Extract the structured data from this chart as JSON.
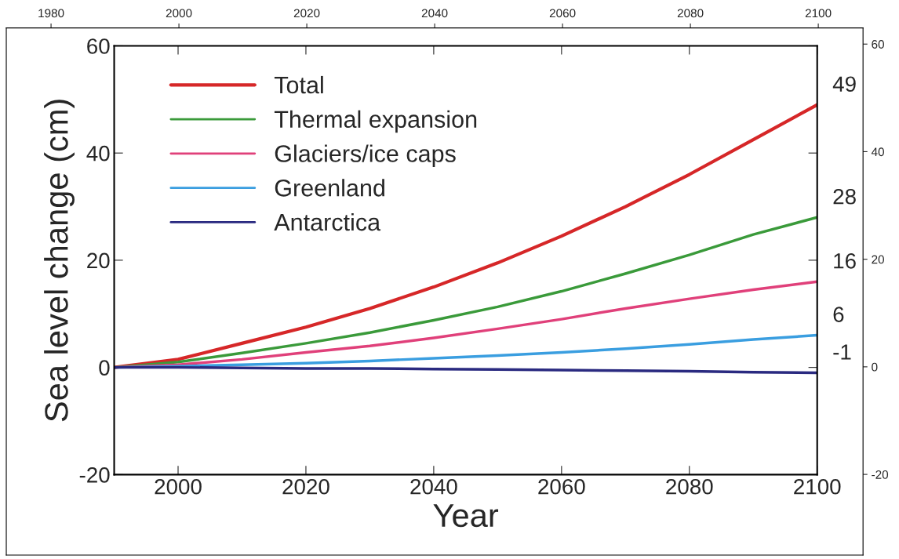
{
  "chart_data": {
    "type": "line",
    "xlabel": "Year",
    "ylabel": "Sea level change (cm)",
    "x": [
      1990,
      2000,
      2010,
      2020,
      2030,
      2040,
      2050,
      2060,
      2070,
      2080,
      2090,
      2100
    ],
    "xlim": [
      1990,
      2100
    ],
    "xticks": [
      2000,
      2020,
      2040,
      2060,
      2080,
      2100
    ],
    "ylim": [
      -20,
      60
    ],
    "yticks": [
      -20,
      0,
      20,
      40,
      60
    ],
    "x2lim": [
      1973,
      2107
    ],
    "x2ticks": [
      1980,
      2000,
      2020,
      2040,
      2060,
      2080,
      2100
    ],
    "y2lim": [
      -35,
      63
    ],
    "y2ticks": [
      -20,
      0,
      20,
      40,
      60
    ],
    "legend": "top left",
    "grid": false,
    "series": [
      {
        "name": "Total",
        "color": "#d62728",
        "values": [
          0,
          1.5,
          4.5,
          7.5,
          11,
          15,
          19.5,
          24.5,
          30,
          36,
          42.5,
          49
        ],
        "value_labels": [
          null,
          null,
          null,
          null,
          null,
          null,
          null,
          null,
          null,
          null,
          null,
          "49"
        ]
      },
      {
        "name": "Thermal expansion",
        "color": "#3a9a3a",
        "values": [
          0,
          1,
          2.7,
          4.5,
          6.5,
          8.8,
          11.3,
          14.2,
          17.5,
          21,
          24.8,
          28
        ],
        "value_labels": [
          null,
          null,
          null,
          null,
          null,
          null,
          null,
          null,
          null,
          null,
          null,
          "28"
        ]
      },
      {
        "name": "Glaciers/ice caps",
        "color": "#e0407a",
        "values": [
          0,
          0.5,
          1.5,
          2.8,
          4,
          5.5,
          7.2,
          9,
          11,
          12.8,
          14.5,
          16
        ],
        "value_labels": [
          null,
          null,
          null,
          null,
          null,
          null,
          null,
          null,
          null,
          null,
          null,
          "16"
        ]
      },
      {
        "name": "Greenland",
        "color": "#3a9ee0",
        "values": [
          0,
          0.2,
          0.5,
          0.8,
          1.2,
          1.7,
          2.2,
          2.8,
          3.5,
          4.3,
          5.2,
          6
        ],
        "value_labels": [
          null,
          null,
          null,
          null,
          null,
          null,
          null,
          null,
          null,
          null,
          null,
          "6"
        ]
      },
      {
        "name": "Antarctica",
        "color": "#2a2a80",
        "values": [
          0,
          0,
          -0.1,
          -0.2,
          -0.2,
          -0.3,
          -0.4,
          -0.5,
          -0.6,
          -0.7,
          -0.9,
          -1
        ],
        "value_labels": [
          null,
          null,
          null,
          null,
          null,
          null,
          null,
          null,
          null,
          null,
          null,
          "-1"
        ]
      }
    ]
  }
}
